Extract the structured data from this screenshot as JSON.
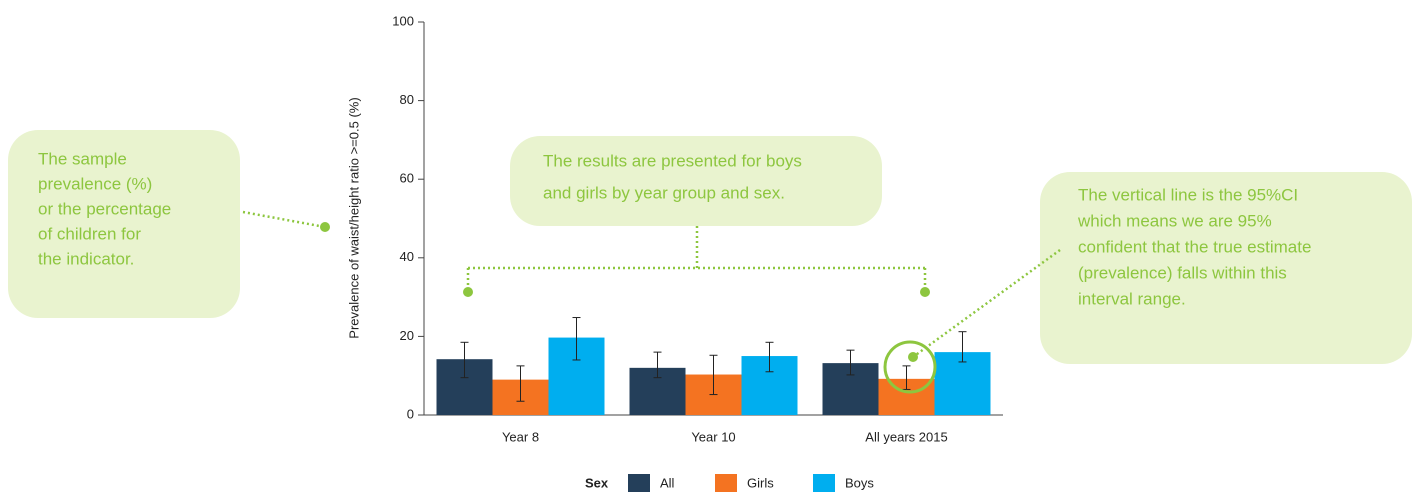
{
  "chart_data": {
    "type": "bar",
    "y_label": "Prevalence of waist/height ratio >=0.5 (%)",
    "categories": [
      "Year 8",
      "Year 10",
      "All years 2015"
    ],
    "series": [
      {
        "name": "All",
        "color": "#243f5a",
        "values": [
          14.2,
          12,
          13.2
        ],
        "error_low": [
          9.5,
          9.5,
          10.2
        ],
        "error_high": [
          18.5,
          16,
          16.5
        ]
      },
      {
        "name": "Girls",
        "color": "#f47321",
        "values": [
          9,
          10.3,
          9.2
        ],
        "error_low": [
          3.5,
          5.2,
          6.5
        ],
        "error_high": [
          12.5,
          15.2,
          12.5
        ]
      },
      {
        "name": "Boys",
        "color": "#00aeef",
        "values": [
          19.7,
          15,
          16
        ],
        "error_low": [
          14,
          11,
          13.5
        ],
        "error_high": [
          24.8,
          18.5,
          21.2
        ]
      }
    ],
    "ylim": [
      0,
      100
    ],
    "yticks": [
      0,
      20,
      40,
      60,
      80,
      100
    ],
    "legend_title": "Sex",
    "annotations": [
      [
        "The sample",
        "prevalence (%)",
        "or the percentage",
        "of children for",
        "the indicator."
      ],
      [
        "The results are presented for boys",
        "and girls by year group and sex."
      ],
      [
        "The vertical line is the 95%CI",
        "which means we are 95%",
        "confident that the true estimate",
        "(prevalence) falls within this",
        "interval range."
      ]
    ]
  }
}
